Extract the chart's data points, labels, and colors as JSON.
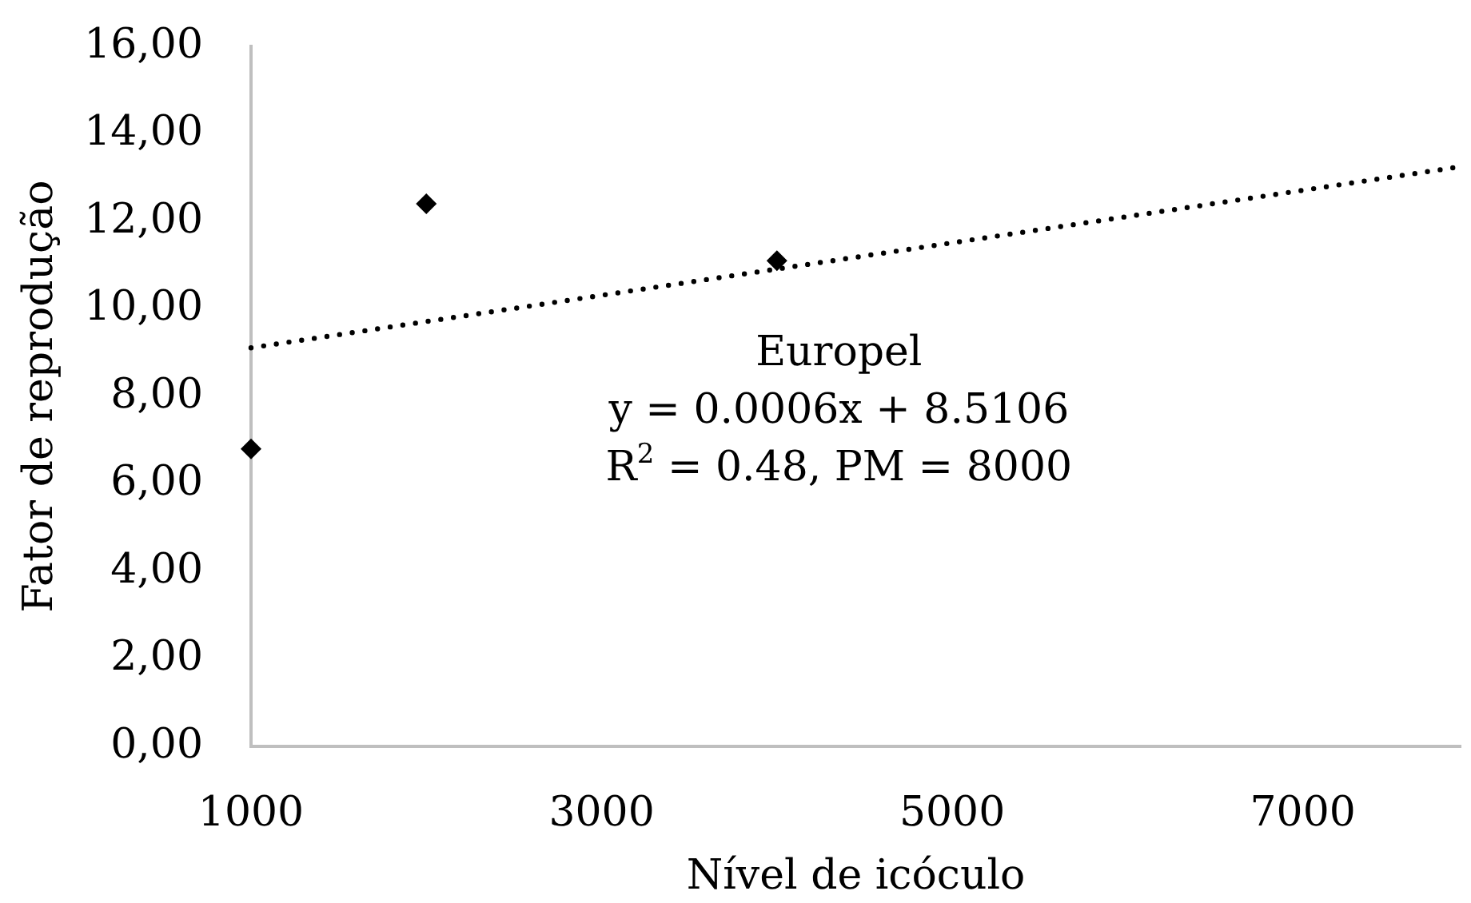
{
  "chart_data": {
    "type": "scatter",
    "xlabel": "Nível de icóculo",
    "ylabel": "Fator de reprodução",
    "x": [
      1000,
      2000,
      4000
    ],
    "series": [
      {
        "color": "#000000",
        "values": [
          6.8,
          12.4,
          11.1
        ],
        "marker": "diamond"
      },
      {
        "type": "line",
        "x": [
          1000,
          7900
        ],
        "values": [
          9.11,
          13.25
        ],
        "color": "#000000",
        "line_style": "dotted",
        "marker": "none"
      }
    ],
    "xlim": [
      1000,
      7900
    ],
    "xticks": [
      1000,
      3000,
      5000,
      7000
    ],
    "ylim": [
      0,
      16
    ],
    "yticks": [
      {
        "value": 0,
        "label": "0,00"
      },
      {
        "value": 2,
        "label": "2,00"
      },
      {
        "value": 4,
        "label": "4,00"
      },
      {
        "value": 6,
        "label": "6,00"
      },
      {
        "value": 8,
        "label": "8,00"
      },
      {
        "value": 10,
        "label": "10,00"
      },
      {
        "value": 12,
        "label": "12,00"
      },
      {
        "value": 14,
        "label": "14,00"
      },
      {
        "value": 16,
        "label": "16,00"
      }
    ],
    "grid": false,
    "legend": false,
    "annotations": [
      "Europel",
      "y = 0.0006x + 8.5106",
      "R$^{2}$ = 0.48, PM = 8000"
    ]
  }
}
